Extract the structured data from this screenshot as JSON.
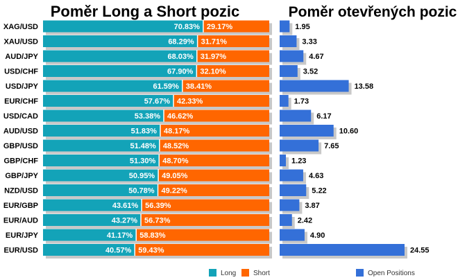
{
  "chart_data": [
    {
      "type": "bar",
      "orientation": "horizontal",
      "stacked": true,
      "percent_stacked": true,
      "title": "Poměr Long a Short pozic",
      "categories": [
        "XAG/USD",
        "XAU/USD",
        "AUD/JPY",
        "USD/CHF",
        "USD/JPY",
        "EUR/CHF",
        "USD/CAD",
        "AUD/USD",
        "GBP/USD",
        "GBP/CHF",
        "GBP/JPY",
        "NZD/USD",
        "EUR/GBP",
        "EUR/AUD",
        "EUR/JPY",
        "EUR/USD"
      ],
      "series": [
        {
          "name": "Long",
          "color": "#13a3b8",
          "values": [
            70.83,
            68.29,
            68.03,
            67.9,
            61.59,
            57.67,
            53.38,
            51.83,
            51.48,
            51.3,
            50.95,
            50.78,
            43.61,
            43.27,
            41.17,
            40.57
          ],
          "labels": [
            "70.83%",
            "68.29%",
            "68.03%",
            "67.90%",
            "61.59%",
            "57.67%",
            "53.38%",
            "51.83%",
            "51.48%",
            "51.30%",
            "50.95%",
            "50.78%",
            "43.61%",
            "43.27%",
            "41.17%",
            "40.57%"
          ]
        },
        {
          "name": "Short",
          "color": "#ff6600",
          "values": [
            29.17,
            31.71,
            31.97,
            32.1,
            38.41,
            42.33,
            46.62,
            48.17,
            48.52,
            48.7,
            49.05,
            49.22,
            56.39,
            56.73,
            58.83,
            59.43
          ],
          "labels": [
            "29.17%",
            "31.71%",
            "31.97%",
            "32.10%",
            "38.41%",
            "42.33%",
            "46.62%",
            "48.17%",
            "48.52%",
            "48.70%",
            "49.05%",
            "49.22%",
            "56.39%",
            "56.73%",
            "58.83%",
            "59.43%"
          ]
        }
      ],
      "xlim": [
        0,
        100
      ],
      "legend": "bottom",
      "grid": false
    },
    {
      "type": "bar",
      "orientation": "horizontal",
      "title": "Poměr otevřených pozic",
      "categories": [
        "XAG/USD",
        "XAU/USD",
        "AUD/JPY",
        "USD/CHF",
        "USD/JPY",
        "EUR/CHF",
        "USD/CAD",
        "AUD/USD",
        "GBP/USD",
        "GBP/CHF",
        "GBP/JPY",
        "NZD/USD",
        "EUR/GBP",
        "EUR/AUD",
        "EUR/JPY",
        "EUR/USD"
      ],
      "series": [
        {
          "name": "Open Positions",
          "color": "#3470d8",
          "values": [
            1.95,
            3.33,
            4.67,
            3.52,
            13.58,
            1.73,
            6.17,
            10.6,
            7.65,
            1.23,
            4.63,
            5.22,
            3.87,
            2.42,
            4.9,
            24.55
          ],
          "labels": [
            "1.95",
            "3.33",
            "4.67",
            "3.52",
            "13.58",
            "1.73",
            "6.17",
            "10.60",
            "7.65",
            "1.23",
            "4.63",
            "5.22",
            "3.87",
            "2.42",
            "4.90",
            "24.55"
          ]
        }
      ],
      "xlim": [
        0,
        24.55
      ],
      "legend": "bottom",
      "grid": false
    }
  ]
}
